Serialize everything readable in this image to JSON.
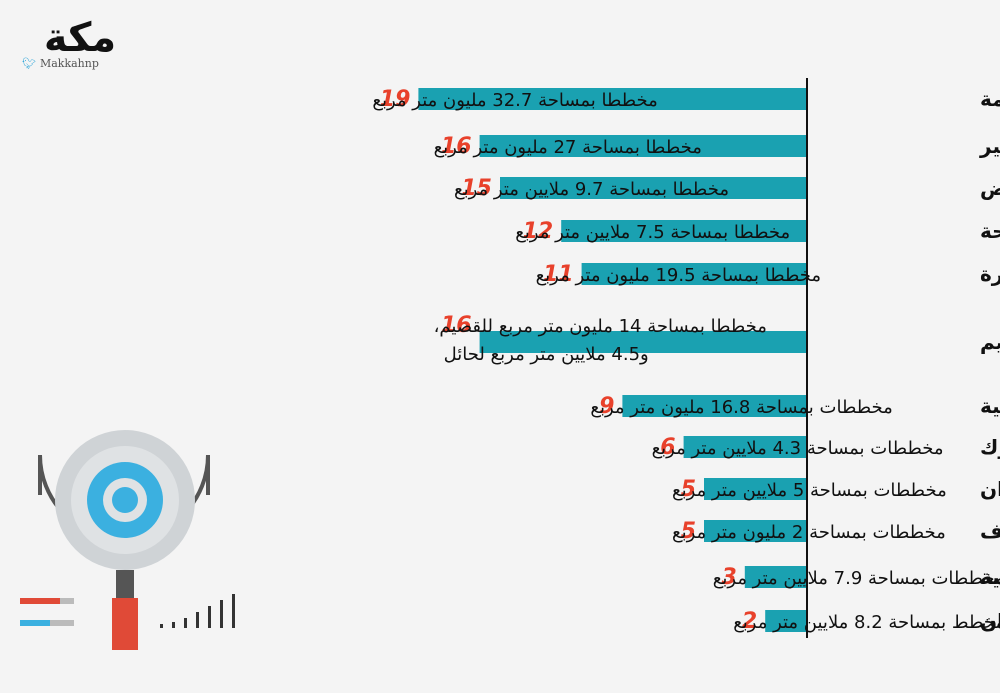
{
  "header": {
    "logo_text": "مكة",
    "twitter_handle": "Makkahnp",
    "twitter_icon": "bird-icon"
  },
  "colors": {
    "bar": "#1aa1b1",
    "number": "#e8412b",
    "text": "#111111",
    "axis": "#111111"
  },
  "chart_data": {
    "type": "bar",
    "orientation": "horizontal",
    "categories": [
      "مكة المكرمة",
      "عسير",
      "الرياض",
      "الباحة",
      "المدينة المنورة",
      "حائل والقصيم",
      "الشرقية",
      "تبوك",
      "جازان",
      "الجوف",
      "الحدود الشمالية",
      "نجران"
    ],
    "values": [
      19,
      16,
      15,
      12,
      11,
      16,
      9,
      6,
      5,
      5,
      3,
      2
    ],
    "annotations": [
      [
        "مخططا بمساحة 32.7 مليون متر مربع"
      ],
      [
        "مخططا بمساحة 27 مليون متر مربع"
      ],
      [
        "مخططا بمساحة 9.7 ملايين متر مربع"
      ],
      [
        "مخططا بمساحة 7.5 ملايين متر مربع"
      ],
      [
        "مخططا بمساحة 19.5 مليون متر مربع"
      ],
      [
        "مخططا بمساحة 14 مليون متر مربع للقصيم،",
        "و4.5 ملايين  متر مربع لحائل"
      ],
      [
        "مخططات بمساحة 16.8 مليون متر مربع"
      ],
      [
        "مخططات بمساحة 4.3 ملايين متر مربع"
      ],
      [
        "مخططات بمساحة 5 ملايين متر مربع"
      ],
      [
        "مخططات بمساحة 2 مليون متر مربع"
      ],
      [
        "مخططات بمساحة 7.9 ملايين متر مربع"
      ],
      [
        "مخطط بمساحة 8.2 ملايين متر مربع"
      ]
    ]
  }
}
